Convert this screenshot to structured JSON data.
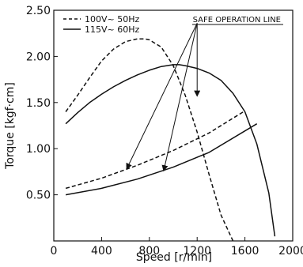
{
  "chart_data": {
    "type": "line",
    "xlabel": "Speed [r/min]",
    "ylabel": "Torque [kgf·cm]",
    "xlim": [
      0,
      2000
    ],
    "ylim": [
      0,
      2.5
    ],
    "xticks": [
      "0",
      "400",
      "800",
      "1200",
      "1600",
      "2000"
    ],
    "yticks": [
      "0.50",
      "1.00",
      "1.50",
      "2.00",
      "2.50"
    ],
    "grid": false,
    "legend_position": "top-left",
    "series": [
      {
        "name": "100V~ 50Hz",
        "kind": "torque-curve",
        "style": "dashed",
        "x": [
          100,
          200,
          300,
          400,
          500,
          600,
          700,
          760,
          800,
          900,
          1000,
          1100,
          1200,
          1300,
          1400,
          1500
        ],
        "y": [
          1.4,
          1.58,
          1.77,
          1.95,
          2.08,
          2.16,
          2.19,
          2.19,
          2.18,
          2.1,
          1.9,
          1.58,
          1.18,
          0.72,
          0.28,
          0.0
        ]
      },
      {
        "name": "115V~ 60Hz",
        "kind": "torque-curve",
        "style": "solid",
        "x": [
          100,
          200,
          300,
          400,
          500,
          600,
          700,
          800,
          900,
          1000,
          1050,
          1100,
          1200,
          1300,
          1400,
          1500,
          1600,
          1700,
          1800,
          1850
        ],
        "y": [
          1.27,
          1.39,
          1.5,
          1.59,
          1.67,
          1.74,
          1.8,
          1.85,
          1.89,
          1.91,
          1.91,
          1.9,
          1.87,
          1.82,
          1.74,
          1.6,
          1.4,
          1.05,
          0.52,
          0.05
        ]
      },
      {
        "kind": "safe-operation-line",
        "style": "dashed",
        "x": [
          100,
          400,
          700,
          1000,
          1300,
          1600
        ],
        "y": [
          0.57,
          0.68,
          0.82,
          0.98,
          1.17,
          1.41
        ]
      },
      {
        "kind": "safe-operation-line",
        "style": "solid",
        "x": [
          100,
          400,
          700,
          1000,
          1300,
          1700
        ],
        "y": [
          0.5,
          0.57,
          0.67,
          0.8,
          0.96,
          1.27
        ]
      }
    ],
    "annotation": {
      "text": "SAFE OPERATION LINE",
      "arrow_targets": [
        {
          "x": 1200,
          "y": 1.57
        },
        {
          "x": 610,
          "y": 0.78
        },
        {
          "x": 920,
          "y": 0.76
        }
      ]
    }
  }
}
